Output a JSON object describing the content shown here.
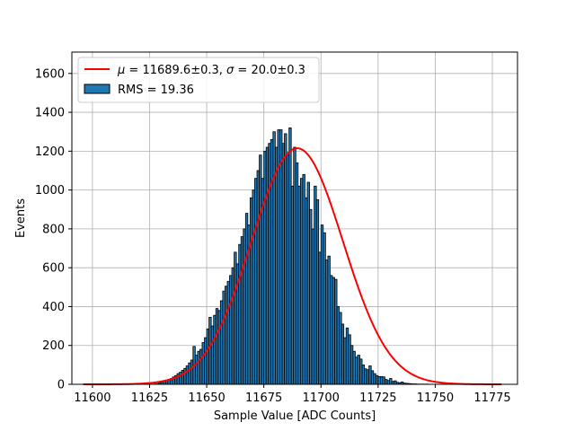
{
  "chart_data": {
    "type": "bar",
    "xlabel": "Sample Value [ADC Counts]",
    "ylabel": "Events",
    "xlim": [
      11591,
      11786
    ],
    "ylim": [
      0,
      1710
    ],
    "xticks": [
      11600,
      11625,
      11650,
      11675,
      11700,
      11725,
      11750,
      11775
    ],
    "yticks": [
      0,
      200,
      400,
      600,
      800,
      1000,
      1200,
      1400,
      1600
    ],
    "grid": true,
    "legend_position": "top-left",
    "histogram": {
      "name": "RMS = 19.36",
      "color": "#1f77b4",
      "edge_color": "#000000",
      "bin_width": 1,
      "bin_start": 11627,
      "values": [
        2,
        4,
        8,
        12,
        18,
        22,
        25,
        30,
        38,
        45,
        55,
        62,
        72,
        82,
        95,
        110,
        125,
        195,
        150,
        170,
        180,
        215,
        240,
        285,
        345,
        300,
        355,
        390,
        380,
        430,
        480,
        505,
        530,
        560,
        600,
        680,
        620,
        720,
        760,
        800,
        880,
        820,
        960,
        1000,
        1060,
        1100,
        1180,
        1060,
        1200,
        1220,
        1240,
        1260,
        1300,
        1220,
        1310,
        1310,
        1240,
        1290,
        1180,
        1320,
        1020,
        1220,
        1140,
        1020,
        1060,
        1080,
        960,
        1040,
        900,
        800,
        1020,
        950,
        680,
        820,
        780,
        640,
        660,
        560,
        550,
        540,
        400,
        370,
        310,
        240,
        290,
        255,
        200,
        170,
        140,
        150,
        130,
        100,
        80,
        75,
        95,
        70,
        55,
        45,
        40,
        40,
        38,
        25,
        20,
        30,
        15,
        18,
        10,
        8,
        12,
        6,
        5,
        4,
        3,
        2,
        2,
        1,
        1,
        1,
        1,
        1
      ]
    },
    "fit": {
      "name": "μ = 11689.6±0.3, σ = 20.0±0.3",
      "name_parts": {
        "mu_symbol": "μ",
        "mu_text": " = 11689.6±0.3, ",
        "sigma_symbol": "σ",
        "sigma_text": " = 20.0±0.3"
      },
      "color": "#ff0000",
      "mu": 11689.6,
      "sigma": 20.0,
      "amplitude": 1215,
      "x_range": [
        11596,
        11779
      ]
    }
  }
}
